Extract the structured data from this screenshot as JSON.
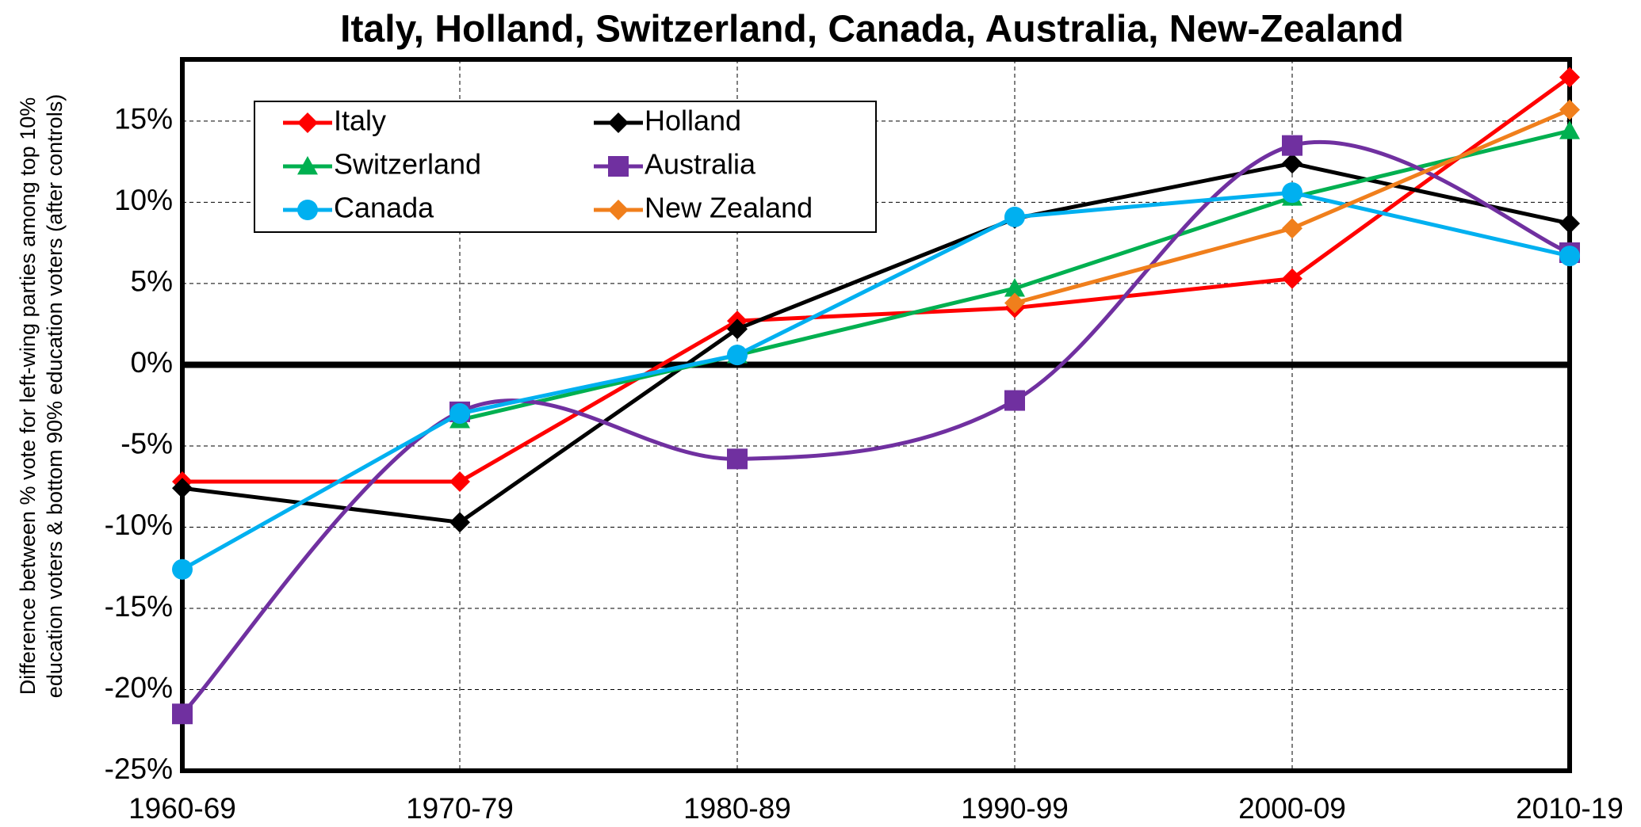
{
  "chart_data": {
    "type": "line",
    "title": "Italy, Holland, Switzerland, Canada, Australia, New-Zealand",
    "y_label": [
      "Difference between % vote for left-wing parties among top 10%",
      "education voters & bottom 90% education voters (after controls)"
    ],
    "categories": [
      "1960-69",
      "1970-79",
      "1980-89",
      "1990-99",
      "2000-09",
      "2010-19"
    ],
    "series": [
      {
        "name": "Italy",
        "color": "#ff0000",
        "marker": "diamond",
        "values": [
          -7.2,
          -7.2,
          2.7,
          3.5,
          5.3,
          17.7
        ]
      },
      {
        "name": "Holland",
        "color": "#000000",
        "marker": "diamond",
        "values": [
          -7.6,
          -9.7,
          2.2,
          9.0,
          12.4,
          8.7
        ]
      },
      {
        "name": "Switzerland",
        "color": "#00b050",
        "marker": "triangle",
        "values": [
          null,
          -3.4,
          0.6,
          4.7,
          10.3,
          14.4
        ]
      },
      {
        "name": "Australia",
        "color": "#7030a0",
        "marker": "square",
        "smooth": true,
        "values": [
          -21.5,
          -2.9,
          -5.8,
          -2.2,
          13.5,
          6.9
        ]
      },
      {
        "name": "Canada",
        "color": "#00b0f0",
        "marker": "circle",
        "values": [
          -12.6,
          -3.0,
          0.6,
          9.1,
          10.6,
          6.7
        ]
      },
      {
        "name": "New Zealand",
        "color": "#f07f1c",
        "marker": "diamond",
        "values": [
          null,
          null,
          null,
          3.8,
          8.4,
          15.7
        ]
      }
    ],
    "ylim": [
      -25,
      18.8
    ],
    "yticks": [
      {
        "value": -25,
        "label": "-25%"
      },
      {
        "value": -20,
        "label": "-20%"
      },
      {
        "value": -15,
        "label": "-15%"
      },
      {
        "value": -10,
        "label": "-10%"
      },
      {
        "value": -5,
        "label": "-5%"
      },
      {
        "value": 0,
        "label": "0%"
      },
      {
        "value": 5,
        "label": "5%"
      },
      {
        "value": 10,
        "label": "10%"
      },
      {
        "value": 15,
        "label": "15%"
      }
    ],
    "grid": true,
    "legend": "upper left"
  }
}
